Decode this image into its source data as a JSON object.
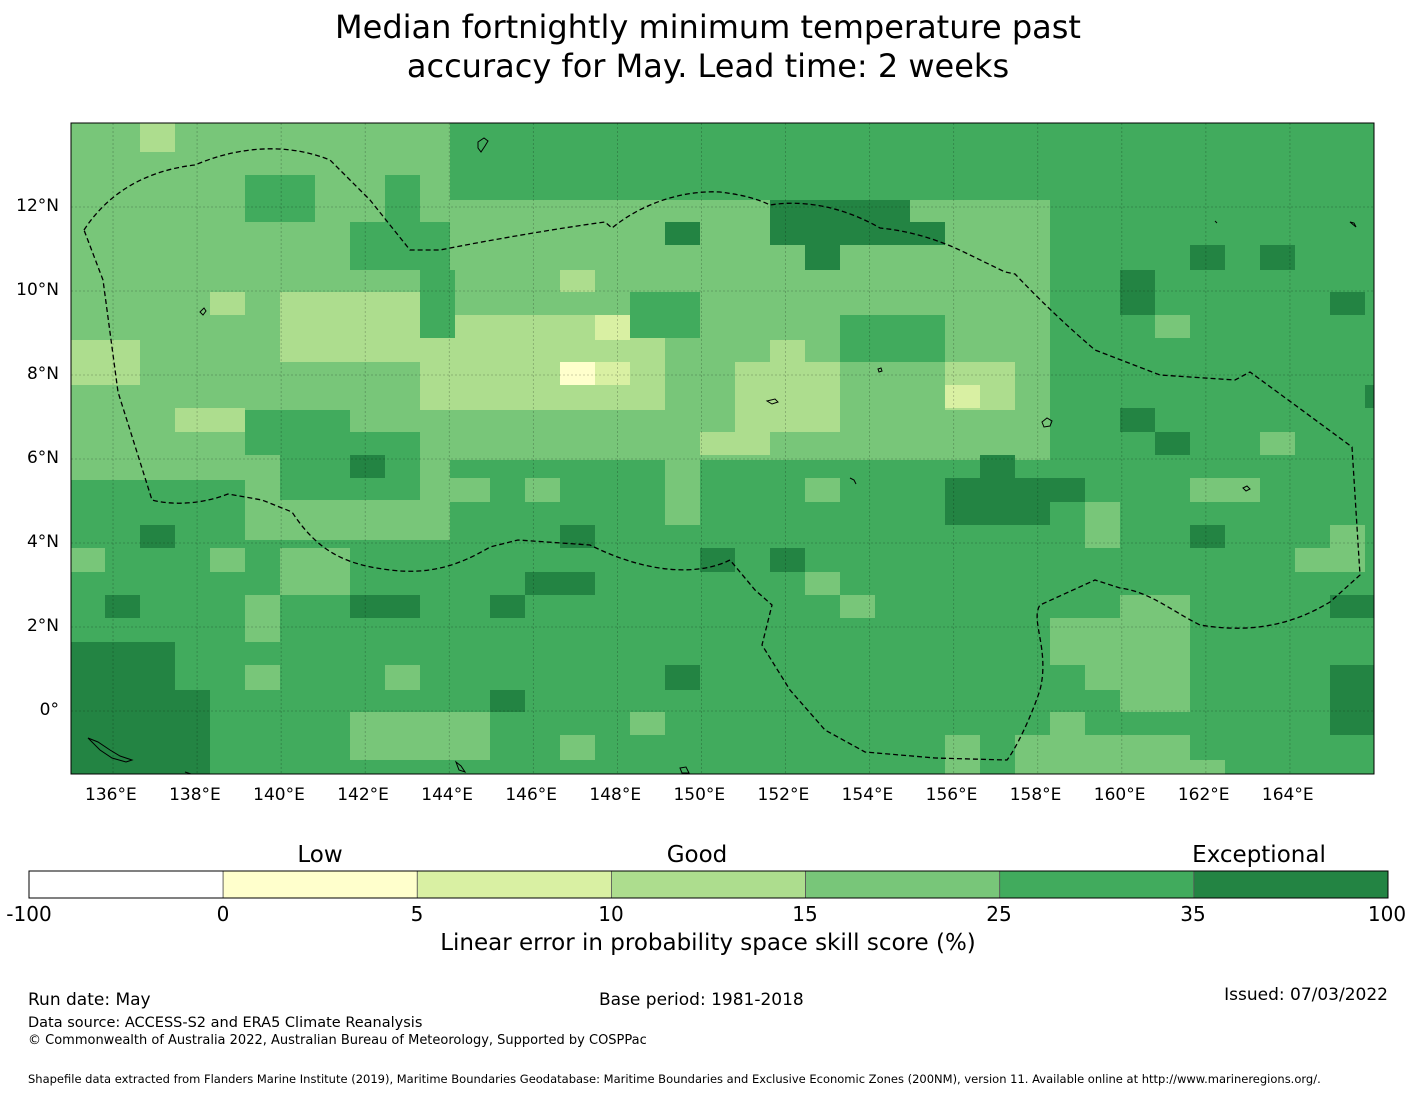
{
  "title_line1": "Median fortnightly minimum temperature past",
  "title_line2": "accuracy for May. Lead time: 2 weeks",
  "map": {
    "lon_labels": [
      "136°E",
      "138°E",
      "140°E",
      "142°E",
      "144°E",
      "146°E",
      "148°E",
      "150°E",
      "152°E",
      "154°E",
      "156°E",
      "158°E",
      "160°E",
      "162°E",
      "164°E"
    ],
    "lat_labels": [
      "12°N",
      "10°N",
      "8°N",
      "6°N",
      "4°N",
      "2°N",
      "0°"
    ],
    "lon_range": [
      135,
      166
    ],
    "lat_range": [
      -1.5,
      14
    ],
    "region_outline": "Federated States of Micronesia EEZ (dashed)",
    "colors": {
      "c0": "#ffffcc",
      "c1": "#d9f0a3",
      "c2": "#addd8e",
      "c3": "#78c679",
      "c4": "#41ab5d",
      "c5": "#238443"
    }
  },
  "colorbar": {
    "categories": [
      "Low",
      "Good",
      "Exceptional"
    ],
    "ticks": [
      "-100",
      "0",
      "5",
      "10",
      "15",
      "25",
      "35",
      "100"
    ],
    "colors": [
      "#ffffff",
      "#ffffcc",
      "#d9f0a3",
      "#addd8e",
      "#78c679",
      "#41ab5d",
      "#238443"
    ],
    "label": "Linear error in probability space skill score (%)"
  },
  "footer": {
    "run_date": "Run date: May",
    "base_period": "Base period: 1981-2018",
    "issued": "Issued: 07/03/2022",
    "data_source": "Data source: ACCESS-S2 and ERA5 Climate Reanalysis",
    "copyright": "© Commonwealth of Australia 2022, Australian Bureau of Meteorology, Supported by COSPPac",
    "shapefile": "Shapefile data extracted from Flanders Marine Institute (2019), Maritime Boundaries Geodatabase: Maritime Boundaries and Exclusive Economic Zones (200NM), version 11. Available online at http://www.marineregions.org/."
  }
}
